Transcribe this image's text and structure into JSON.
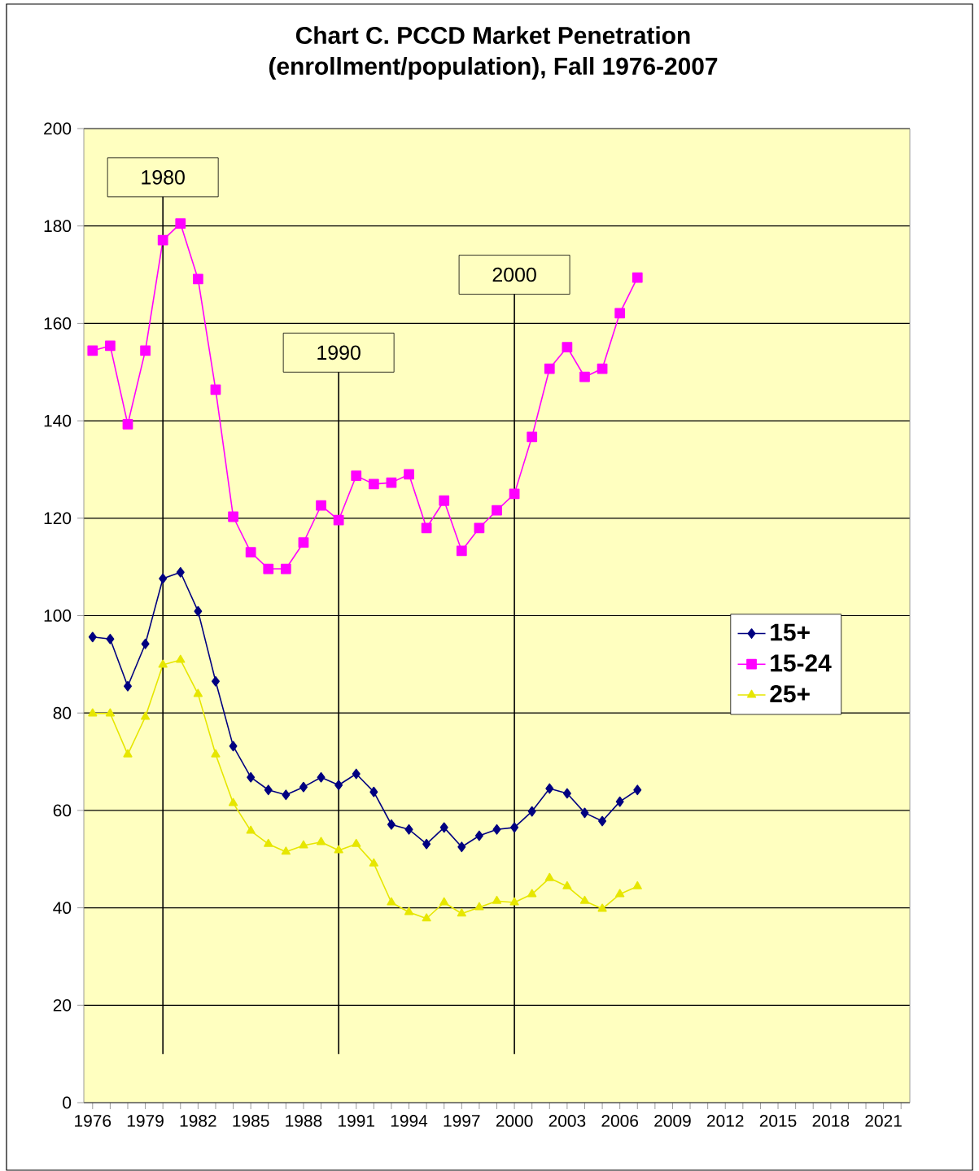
{
  "chart_data": {
    "type": "line",
    "title": "Chart C. PCCD Market Penetration",
    "subtitle": "(enrollment/population), Fall 1976-2007",
    "x": [
      1976,
      1977,
      1978,
      1979,
      1980,
      1981,
      1982,
      1983,
      1984,
      1985,
      1986,
      1987,
      1988,
      1989,
      1990,
      1991,
      1992,
      1993,
      1994,
      1995,
      1996,
      1997,
      1998,
      1999,
      2000,
      2001,
      2002,
      2003,
      2004,
      2005,
      2006,
      2007
    ],
    "series": [
      {
        "name": "15+",
        "color": "#000080",
        "marker": "diamond",
        "values": [
          95.6,
          95.2,
          85.5,
          94.2,
          107.6,
          108.9,
          100.9,
          86.5,
          73.2,
          66.8,
          64.2,
          63.2,
          64.8,
          66.8,
          65.2,
          67.5,
          63.8,
          57.1,
          56.1,
          53.1,
          56.5,
          52.5,
          54.8,
          56.1,
          56.5,
          59.8,
          64.5,
          63.5,
          59.5,
          57.8,
          61.8,
          64.2
        ]
      },
      {
        "name": "15-24",
        "color": "#ff00ff",
        "marker": "square",
        "values": [
          154.4,
          155.4,
          139.3,
          154.4,
          177.1,
          180.5,
          169.1,
          146.4,
          120.3,
          113.0,
          109.6,
          109.6,
          115.0,
          122.6,
          119.6,
          128.7,
          127.0,
          127.3,
          129.0,
          118.0,
          123.6,
          113.3,
          118.0,
          121.6,
          125.0,
          136.7,
          150.7,
          155.1,
          149.0,
          150.7,
          162.1,
          169.4
        ]
      },
      {
        "name": "25+",
        "color": "#e6e600",
        "marker": "triangle",
        "values": [
          79.9,
          79.9,
          71.5,
          79.2,
          89.9,
          90.9,
          83.9,
          71.5,
          61.5,
          55.8,
          53.1,
          51.5,
          52.8,
          53.5,
          51.8,
          53.1,
          49.1,
          41.1,
          39.1,
          37.8,
          41.1,
          38.8,
          40.1,
          41.4,
          41.1,
          42.8,
          46.1,
          44.4,
          41.4,
          39.8,
          42.8,
          44.4
        ]
      }
    ],
    "xlim": [
      1975.5,
      2022.5
    ],
    "xticks": [
      1976,
      {
        "value": 1977,
        "label": null
      },
      {
        "value": 1978,
        "label": null
      },
      1979,
      {
        "value": 1980,
        "label": null
      },
      {
        "value": 1981,
        "label": null
      },
      1982,
      {
        "value": 1983,
        "label": null
      },
      {
        "value": 1984,
        "label": null
      },
      1985,
      {
        "value": 1986,
        "label": null
      },
      {
        "value": 1987,
        "label": null
      },
      1988,
      {
        "value": 1989,
        "label": null
      },
      {
        "value": 1990,
        "label": null
      },
      1991,
      {
        "value": 1992,
        "label": null
      },
      {
        "value": 1993,
        "label": null
      },
      1994,
      {
        "value": 1995,
        "label": null
      },
      {
        "value": 1996,
        "label": null
      },
      1997,
      {
        "value": 1998,
        "label": null
      },
      {
        "value": 1999,
        "label": null
      },
      2000,
      {
        "value": 2001,
        "label": null
      },
      {
        "value": 2002,
        "label": null
      },
      2003,
      {
        "value": 2004,
        "label": null
      },
      {
        "value": 2005,
        "label": null
      },
      2006,
      {
        "value": 2007,
        "label": null
      },
      {
        "value": 2008,
        "label": null
      },
      2009,
      {
        "value": 2010,
        "label": null
      },
      {
        "value": 2011,
        "label": null
      },
      2012,
      {
        "value": 2013,
        "label": null
      },
      {
        "value": 2014,
        "label": null
      },
      2015,
      {
        "value": 2016,
        "label": null
      },
      {
        "value": 2017,
        "label": null
      },
      2018,
      {
        "value": 2019,
        "label": null
      },
      {
        "value": 2020,
        "label": null
      },
      2021,
      {
        "value": 2022,
        "label": null
      }
    ],
    "ylim": [
      0,
      200
    ],
    "yticks": [
      0,
      20,
      40,
      60,
      80,
      100,
      120,
      140,
      160,
      180,
      200
    ],
    "grid": "y",
    "legend": "right",
    "ref_lines": [
      {
        "axis": "x",
        "value": 1980,
        "label": "1980",
        "color": "#000000"
      },
      {
        "axis": "x",
        "value": 1990,
        "label": "1990",
        "color": "#000000"
      },
      {
        "axis": "x",
        "value": 2000,
        "label": "2000",
        "color": "#000000"
      }
    ]
  }
}
